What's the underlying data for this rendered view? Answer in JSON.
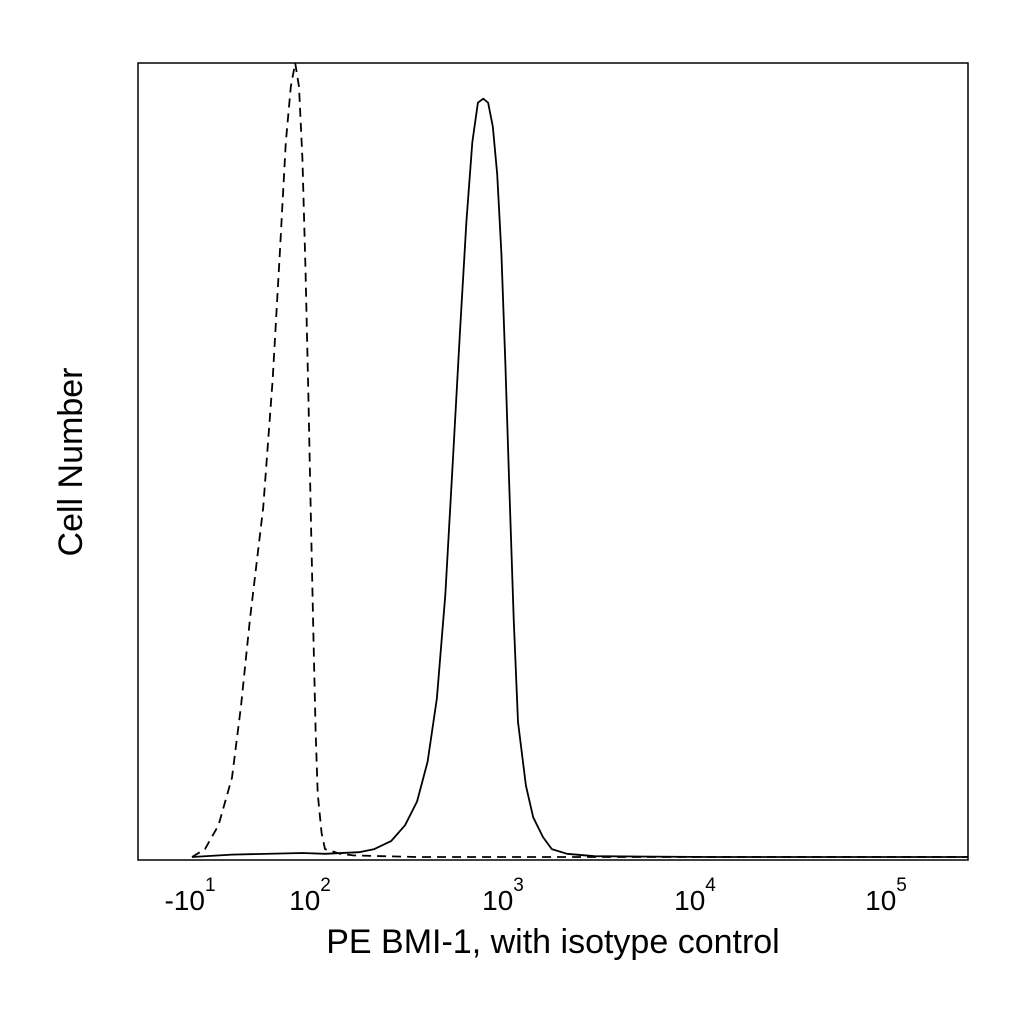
{
  "chart_data": {
    "type": "line",
    "title": "",
    "xlabel": "PE BMI-1, with isotype control",
    "ylabel": "Cell Number",
    "x_scale": "biexponential",
    "xlim": [
      -20,
      250000
    ],
    "ylim": [
      0,
      1.0
    ],
    "grid": false,
    "legend": "none",
    "x_ticks": [
      {
        "value": -10,
        "base": "-10",
        "exp": "1"
      },
      {
        "value": 100,
        "base": "10",
        "exp": "2"
      },
      {
        "value": 1000,
        "base": "10",
        "exp": "3"
      },
      {
        "value": 10000,
        "base": "10",
        "exp": "4"
      },
      {
        "value": 100000,
        "base": "10",
        "exp": "5"
      }
    ],
    "series": [
      {
        "style": "dashed",
        "color": "#000000",
        "x": [
          -20,
          -10,
          -5,
          0,
          5,
          10,
          15,
          20,
          25,
          30,
          35,
          40,
          45,
          50,
          55,
          60,
          65,
          70,
          75,
          80,
          90,
          100,
          120,
          140,
          200,
          300,
          500,
          1000,
          10000,
          100000,
          250000
        ],
        "y": [
          0.0,
          0.01,
          0.04,
          0.1,
          0.19,
          0.3,
          0.44,
          0.6,
          0.76,
          0.9,
          0.97,
          1.0,
          0.97,
          0.88,
          0.74,
          0.58,
          0.42,
          0.28,
          0.16,
          0.08,
          0.03,
          0.01,
          0.004,
          0.002,
          0.001,
          0.0,
          0.0,
          0.0,
          0.0,
          0.0,
          0.0
        ]
      },
      {
        "style": "solid",
        "color": "#000000",
        "x": [
          -20,
          0,
          50,
          100,
          150,
          180,
          220,
          260,
          300,
          340,
          380,
          420,
          460,
          500,
          540,
          580,
          620,
          660,
          700,
          740,
          780,
          820,
          860,
          900,
          950,
          1000,
          1100,
          1200,
          1350,
          1500,
          1800,
          2500,
          10000,
          100000,
          250000
        ],
        "y": [
          0.0,
          0.003,
          0.005,
          0.004,
          0.006,
          0.01,
          0.02,
          0.04,
          0.07,
          0.12,
          0.2,
          0.33,
          0.5,
          0.66,
          0.8,
          0.9,
          0.95,
          0.955,
          0.95,
          0.92,
          0.86,
          0.76,
          0.62,
          0.47,
          0.3,
          0.17,
          0.09,
          0.05,
          0.025,
          0.01,
          0.004,
          0.001,
          0.0,
          0.0,
          0.0
        ]
      }
    ]
  }
}
